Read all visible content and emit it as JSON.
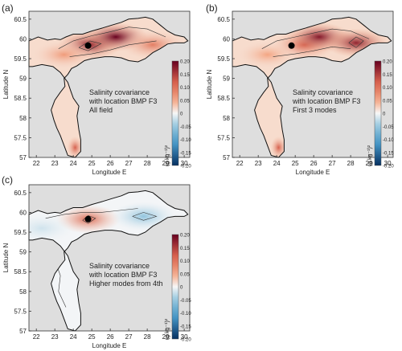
{
  "chart_data": [
    {
      "type": "heatmap",
      "panel_label": "(a)",
      "annotation": [
        "Salinity covariance",
        "with location BMP F3",
        "All field"
      ],
      "xlabel": "Longitude E",
      "ylabel": "Latitude N",
      "x_ticks": [
        "22",
        "23",
        "24",
        "25",
        "26",
        "27",
        "28",
        "29",
        "30"
      ],
      "y_ticks": [
        "57",
        "57.5",
        "58",
        "58.5",
        "59",
        "59.5",
        "60",
        "60.5"
      ],
      "xlim": [
        21.6,
        30.3
      ],
      "ylim": [
        57,
        60.7
      ],
      "marker": {
        "lon": 24.8,
        "lat": 59.83
      },
      "colorbar": {
        "label": "(g kg⁻¹)²",
        "ticks": [
          "0.20",
          "0.15",
          "0.10",
          "0.05",
          "0",
          "-0.05",
          "-0.10",
          "-0.15",
          "-0.20"
        ],
        "range": [
          -0.2,
          0.2
        ]
      },
      "hotspots": [
        {
          "lon": 24.9,
          "lat": 59.85,
          "value": 0.17
        },
        {
          "lon": 26.3,
          "lat": 60.05,
          "value": 0.2
        },
        {
          "lon": 28.3,
          "lat": 59.85,
          "value": 0.09
        },
        {
          "lon": 23.5,
          "lat": 59.6,
          "value": 0.06
        },
        {
          "lon": 24.1,
          "lat": 57.25,
          "value": 0.12
        }
      ]
    },
    {
      "type": "heatmap",
      "panel_label": "(b)",
      "annotation": [
        "Salinity covariance",
        "with location BMP F3",
        "First 3 modes"
      ],
      "xlabel": "Longitude E",
      "ylabel": "Latitude N",
      "x_ticks": [
        "22",
        "23",
        "24",
        "25",
        "26",
        "27",
        "28",
        "29",
        "30"
      ],
      "y_ticks": [
        "57",
        "57.5",
        "58",
        "58.5",
        "59",
        "59.5",
        "60",
        "60.5"
      ],
      "xlim": [
        21.6,
        30.3
      ],
      "ylim": [
        57,
        60.7
      ],
      "marker": {
        "lon": 24.8,
        "lat": 59.83
      },
      "colorbar": {
        "label": "(g kg⁻¹)²",
        "ticks": [
          "0.20",
          "0.15",
          "0.10",
          "0.05",
          "0",
          "-0.05",
          "-0.10",
          "-0.15",
          "-0.20"
        ],
        "range": [
          -0.2,
          0.2
        ]
      },
      "hotspots": [
        {
          "lon": 25.5,
          "lat": 59.85,
          "value": 0.12
        },
        {
          "lon": 26.3,
          "lat": 60.05,
          "value": 0.18
        },
        {
          "lon": 28.3,
          "lat": 59.9,
          "value": 0.17
        },
        {
          "lon": 23.5,
          "lat": 59.6,
          "value": 0.05
        },
        {
          "lon": 24.1,
          "lat": 57.25,
          "value": 0.12
        }
      ]
    },
    {
      "type": "heatmap",
      "panel_label": "(c)",
      "annotation": [
        "Salinity covariance",
        "with location BMP F3",
        "Higher modes from 4th"
      ],
      "xlabel": "Longitude E",
      "ylabel": "Latitude N",
      "x_ticks": [
        "22",
        "23",
        "24",
        "25",
        "26",
        "27",
        "28",
        "29",
        "30"
      ],
      "y_ticks": [
        "57",
        "57.5",
        "58",
        "58.5",
        "59",
        "59.5",
        "60",
        "60.5"
      ],
      "xlim": [
        21.6,
        30.3
      ],
      "ylim": [
        57,
        60.7
      ],
      "marker": {
        "lon": 24.8,
        "lat": 59.83
      },
      "colorbar": {
        "label": "(g kg⁻¹)²",
        "ticks": [
          "0.20",
          "0.15",
          "0.10",
          "0.05",
          "0",
          "-0.05",
          "-0.10",
          "-0.15",
          "-0.20"
        ],
        "range": [
          -0.2,
          0.2
        ]
      },
      "hotspots": [
        {
          "lon": 24.8,
          "lat": 59.83,
          "value": 0.11
        },
        {
          "lon": 27.8,
          "lat": 59.9,
          "value": -0.05
        },
        {
          "lon": 22.3,
          "lat": 59.6,
          "value": -0.02
        }
      ]
    }
  ]
}
